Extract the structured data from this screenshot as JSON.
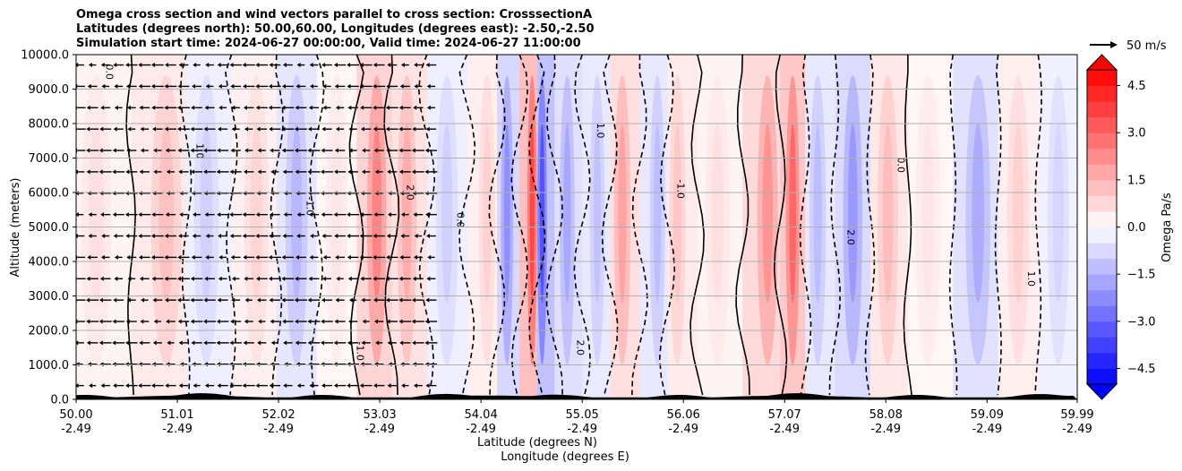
{
  "chart_data": {
    "type": "heatmap",
    "title": [
      "Omega cross section and wind vectors parallel to cross section: CrosssectionA",
      "Latitudes (degrees north): 50.00,60.00, Longitudes (degrees east): -2.50,-2.50",
      "Simulation start time: 2024-06-27 00:00:00, Valid time: 2024-06-27 11:00:00"
    ],
    "ylabel": "Altitude (meters)",
    "xlabel": "Latitude (degrees N)",
    "xlabel2": "Longitude (degrees E)",
    "ylim": [
      0,
      10000
    ],
    "xlim": [
      50.0,
      59.99
    ],
    "yticks": [
      "0.0",
      "1000.0",
      "2000.0",
      "3000.0",
      "4000.0",
      "5000.0",
      "6000.0",
      "7000.0",
      "8000.0",
      "9000.0",
      "10000.0"
    ],
    "xticks": [
      {
        "lat": "50.00",
        "lon": "-2.49"
      },
      {
        "lat": "51.01",
        "lon": "-2.49"
      },
      {
        "lat": "52.02",
        "lon": "-2.49"
      },
      {
        "lat": "53.03",
        "lon": "-2.49"
      },
      {
        "lat": "54.04",
        "lon": "-2.49"
      },
      {
        "lat": "55.05",
        "lon": "-2.49"
      },
      {
        "lat": "56.06",
        "lon": "-2.49"
      },
      {
        "lat": "57.07",
        "lon": "-2.49"
      },
      {
        "lat": "58.08",
        "lon": "-2.49"
      },
      {
        "lat": "59.09",
        "lon": "-2.49"
      },
      {
        "lat": "59.99",
        "lon": "-2.49"
      }
    ],
    "grid": true,
    "colorbar": {
      "label": "Omega Pa/s",
      "range": [
        -5.0,
        5.0
      ],
      "ticks": [
        "4.5",
        "3.0",
        "1.5",
        "0.0",
        "−1.5",
        "−3.0",
        "−4.5"
      ],
      "extend": "both"
    },
    "quiver_key": "50 m/s",
    "contour_labels": [
      "0.0",
      "1.0",
      "-1.0",
      "2.0"
    ],
    "omega_columns": [
      {
        "lat": 50.2,
        "value": 0.6
      },
      {
        "lat": 50.9,
        "value": 1.2
      },
      {
        "lat": 51.3,
        "value": -0.9
      },
      {
        "lat": 51.8,
        "value": 0.8
      },
      {
        "lat": 52.2,
        "value": -1.4
      },
      {
        "lat": 52.6,
        "value": 0.5
      },
      {
        "lat": 53.0,
        "value": 2.4
      },
      {
        "lat": 53.3,
        "value": 1.6
      },
      {
        "lat": 53.7,
        "value": -0.9
      },
      {
        "lat": 54.1,
        "value": 0.9
      },
      {
        "lat": 54.3,
        "value": -2.2
      },
      {
        "lat": 54.55,
        "value": 3.6
      },
      {
        "lat": 54.65,
        "value": -3.4
      },
      {
        "lat": 54.9,
        "value": -1.7
      },
      {
        "lat": 55.2,
        "value": -1.2
      },
      {
        "lat": 55.45,
        "value": 1.8
      },
      {
        "lat": 55.8,
        "value": -1.3
      },
      {
        "lat": 56.0,
        "value": 1.1
      },
      {
        "lat": 56.4,
        "value": 0.6
      },
      {
        "lat": 56.9,
        "value": 2.1
      },
      {
        "lat": 57.15,
        "value": 3.0
      },
      {
        "lat": 57.4,
        "value": -1.3
      },
      {
        "lat": 57.75,
        "value": -2.0
      },
      {
        "lat": 58.1,
        "value": 1.3
      },
      {
        "lat": 58.5,
        "value": 0.5
      },
      {
        "lat": 59.0,
        "value": -1.6
      },
      {
        "lat": 59.4,
        "value": 0.9
      },
      {
        "lat": 59.8,
        "value": -0.8
      }
    ]
  }
}
